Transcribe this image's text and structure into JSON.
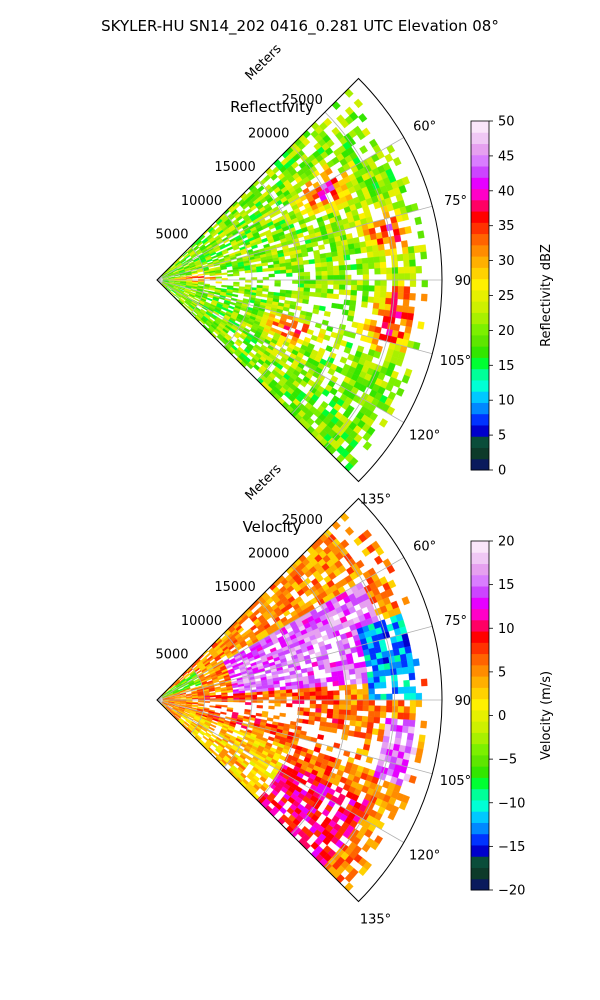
{
  "suptitle": "SKYLER-HU  SN14_202  0416_0.281 UTC Elevation 08°",
  "chart_data": [
    {
      "type": "heatmap",
      "projection": "polar-sector",
      "title": "Reflectivity",
      "radial_axis_label": "Meters",
      "radial_ticks": [
        5000,
        10000,
        15000,
        20000,
        25000
      ],
      "radial_tick_labels": [
        "5000",
        "10000",
        "15000",
        "20000",
        "25000"
      ],
      "rlim": [
        0,
        30000
      ],
      "azimuth_range_deg": [
        45,
        135
      ],
      "azimuth_ticks": [
        60,
        75,
        90,
        105,
        120,
        135
      ],
      "azimuth_tick_labels": [
        "60°",
        "75°",
        "90°",
        "105°",
        "120°",
        "135°"
      ],
      "grid": true,
      "colorbar": {
        "label": "Reflectivity dBZ",
        "range": [
          0,
          50
        ],
        "ticks": [
          0,
          5,
          10,
          15,
          20,
          25,
          30,
          35,
          40,
          45,
          50
        ],
        "tick_labels": [
          "0",
          "5",
          "10",
          "15",
          "20",
          "25",
          "30",
          "35",
          "40",
          "45",
          "50"
        ],
        "colors": [
          "#0a1a5c",
          "#0d3a2a",
          "#0a4d3a",
          "#0000cc",
          "#0033ff",
          "#0088ff",
          "#00c8ff",
          "#00ffd5",
          "#00ff99",
          "#00ff33",
          "#33e600",
          "#5ee600",
          "#7cf000",
          "#a8f000",
          "#cdf000",
          "#e6f000",
          "#fff000",
          "#ffd200",
          "#ffb000",
          "#ff8c00",
          "#ff6400",
          "#ff3200",
          "#ff0000",
          "#ff0064",
          "#ff00c8",
          "#e600ff",
          "#cc44ff",
          "#d97dff",
          "#e6a0f0",
          "#f0c8f5",
          "#fae6fa"
        ]
      },
      "field_summary": {
        "coverage": "echoes fill most of sector from ~1000 m to ~27000 m",
        "hotspots_dbz": [
          {
            "azimuth_deg": 78,
            "range_m": 25000,
            "value": 38
          },
          {
            "azimuth_deg": 62,
            "range_m": 20000,
            "value": 40
          },
          {
            "azimuth_deg": 95,
            "range_m": 26000,
            "value": 36
          },
          {
            "azimuth_deg": 103,
            "range_m": 25000,
            "value": 34
          },
          {
            "azimuth_deg": 110,
            "range_m": 15000,
            "value": 38
          },
          {
            "azimuth_deg": 88,
            "range_m": 4000,
            "value": 36
          }
        ],
        "typical_value_dbz": 20
      }
    },
    {
      "type": "heatmap",
      "projection": "polar-sector",
      "title": "Velocity",
      "radial_axis_label": "Meters",
      "radial_ticks": [
        5000,
        10000,
        15000,
        20000,
        25000
      ],
      "radial_tick_labels": [
        "5000",
        "10000",
        "15000",
        "20000",
        "25000"
      ],
      "rlim": [
        0,
        30000
      ],
      "azimuth_range_deg": [
        45,
        135
      ],
      "azimuth_ticks": [
        60,
        75,
        90,
        105,
        120,
        135
      ],
      "azimuth_tick_labels": [
        "60°",
        "75°",
        "90°",
        "105°",
        "120°",
        "135°"
      ],
      "grid": true,
      "colorbar": {
        "label": "Velocity (m/s)",
        "range": [
          -20,
          20
        ],
        "ticks": [
          -20,
          -15,
          -10,
          -5,
          0,
          5,
          10,
          15,
          20
        ],
        "tick_labels": [
          "−20",
          "−15",
          "−10",
          "−5",
          "0",
          "5",
          "10",
          "15",
          "20"
        ],
        "colors": [
          "#0a1a5c",
          "#0d3a2a",
          "#0a4d3a",
          "#0000cc",
          "#0033ff",
          "#0088ff",
          "#00c8ff",
          "#00ffd5",
          "#00ff99",
          "#00ff33",
          "#33e600",
          "#5ee600",
          "#7cf000",
          "#a8f000",
          "#cdf000",
          "#e6f000",
          "#fff000",
          "#ffd200",
          "#ffb000",
          "#ff8c00",
          "#ff6400",
          "#ff3200",
          "#ff0000",
          "#ff0064",
          "#ff00c8",
          "#e600ff",
          "#cc44ff",
          "#d97dff",
          "#e6a0f0",
          "#f0c8f5",
          "#fae6fa"
        ]
      },
      "field_summary": {
        "coverage": "echoes fill most of sector from ~1000 m to ~27000 m",
        "regions": [
          {
            "azimuth_deg": [
              52,
              70
            ],
            "range_m": [
              0,
              5000
            ],
            "value": -5
          },
          {
            "azimuth_deg": [
              60,
              85
            ],
            "range_m": [
              8000,
              25000
            ],
            "value": 15
          },
          {
            "azimuth_deg": [
              70,
              90
            ],
            "range_m": [
              22000,
              28000
            ],
            "value": -12
          },
          {
            "azimuth_deg": [
              95,
              110
            ],
            "range_m": [
              24000,
              28000
            ],
            "value": 15
          },
          {
            "azimuth_deg": [
              85,
              115
            ],
            "range_m": [
              5000,
              20000
            ],
            "value": 7
          },
          {
            "azimuth_deg": [
              110,
              135
            ],
            "range_m": [
              3000,
              15000
            ],
            "value": 3
          },
          {
            "azimuth_deg": [
              115,
              135
            ],
            "range_m": [
              15000,
              25000
            ],
            "value": 10
          }
        ]
      }
    }
  ]
}
